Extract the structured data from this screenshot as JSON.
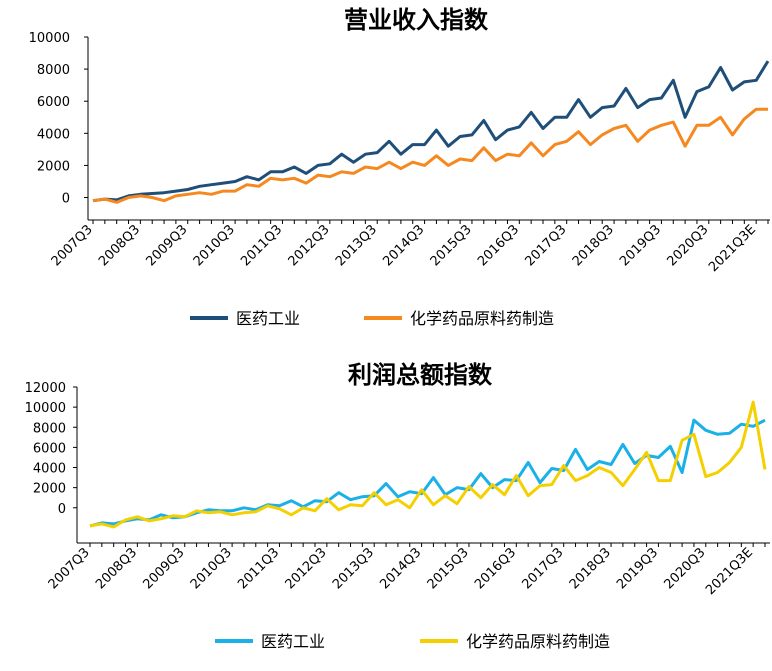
{
  "chart_data": [
    {
      "type": "line",
      "title": "营业收入指数",
      "categories": [
        "2007Q3",
        null,
        null,
        null,
        "2008Q3",
        null,
        null,
        null,
        "2009Q3",
        null,
        null,
        null,
        "2010Q3",
        null,
        null,
        null,
        "2011Q3",
        null,
        null,
        null,
        "2012Q3",
        null,
        null,
        null,
        "2013Q3",
        null,
        null,
        null,
        "2014Q3",
        null,
        null,
        null,
        "2015Q3",
        null,
        null,
        null,
        "2016Q3",
        null,
        null,
        null,
        "2017Q3",
        null,
        null,
        null,
        "2018Q3",
        null,
        null,
        null,
        "2019Q3",
        null,
        null,
        null,
        "2020Q3",
        null,
        null,
        null,
        "2021Q3E",
        null
      ],
      "series": [
        {
          "name": "医药工业",
          "color": "#1f4e79",
          "values": [
            -200,
            -100,
            -150,
            100,
            200,
            250,
            300,
            400,
            500,
            700,
            800,
            900,
            1000,
            1300,
            1100,
            1600,
            1600,
            1900,
            1500,
            2000,
            2100,
            2700,
            2200,
            2700,
            2800,
            3500,
            2700,
            3300,
            3300,
            4200,
            3200,
            3800,
            3900,
            4800,
            3600,
            4200,
            4400,
            5300,
            4300,
            5000,
            5000,
            6100,
            5000,
            5600,
            5700,
            6800,
            5600,
            6100,
            6200,
            7300,
            5000,
            6600,
            6900,
            8100,
            6700,
            7200,
            7300,
            8500
          ]
        },
        {
          "name": "化学药品原料药制造",
          "color": "#f5891f",
          "values": [
            -200,
            -100,
            -300,
            0,
            100,
            0,
            -200,
            100,
            200,
            300,
            200,
            400,
            400,
            800,
            700,
            1200,
            1100,
            1200,
            900,
            1400,
            1300,
            1600,
            1500,
            1900,
            1800,
            2200,
            1800,
            2200,
            2000,
            2600,
            2000,
            2400,
            2300,
            3100,
            2300,
            2700,
            2600,
            3400,
            2600,
            3300,
            3500,
            4100,
            3300,
            3900,
            4300,
            4500,
            3500,
            4200,
            4500,
            4700,
            3200,
            4500,
            4500,
            5000,
            3900,
            4900,
            5500,
            5500
          ]
        }
      ],
      "ylim": [
        -1400,
        10000
      ],
      "yticks": [
        0,
        2000,
        4000,
        6000,
        8000,
        10000
      ]
    },
    {
      "type": "line",
      "title": "利润总额指数",
      "categories": [
        "2007Q3",
        null,
        null,
        null,
        "2008Q3",
        null,
        null,
        null,
        "2009Q3",
        null,
        null,
        null,
        "2010Q3",
        null,
        null,
        null,
        "2011Q3",
        null,
        null,
        null,
        "2012Q3",
        null,
        null,
        null,
        "2013Q3",
        null,
        null,
        null,
        "2014Q3",
        null,
        null,
        null,
        "2015Q3",
        null,
        null,
        null,
        "2016Q3",
        null,
        null,
        null,
        "2017Q3",
        null,
        null,
        null,
        "2018Q3",
        null,
        null,
        null,
        "2019Q3",
        null,
        null,
        null,
        "2020Q3",
        null,
        null,
        null,
        "2021Q3E",
        null
      ],
      "series": [
        {
          "name": "医药工业",
          "color": "#1ab0e8",
          "values": [
            -1800,
            -1500,
            -1600,
            -1300,
            -1100,
            -1200,
            -700,
            -1000,
            -900,
            -500,
            -200,
            -300,
            -300,
            0,
            -200,
            300,
            200,
            700,
            100,
            700,
            600,
            1500,
            800,
            1100,
            1200,
            2400,
            1100,
            1600,
            1400,
            3000,
            1300,
            2000,
            1800,
            3400,
            2000,
            2800,
            2700,
            4500,
            2500,
            3900,
            3700,
            5800,
            3800,
            4600,
            4300,
            6300,
            4400,
            5200,
            5000,
            6100,
            3500,
            8700,
            7700,
            7300,
            7400,
            8300,
            8100,
            8700
          ]
        },
        {
          "name": "化学药品原料药制造",
          "color": "#f5d000",
          "values": [
            -1800,
            -1600,
            -1900,
            -1200,
            -900,
            -1300,
            -1100,
            -800,
            -900,
            -300,
            -500,
            -400,
            -700,
            -500,
            -400,
            200,
            -100,
            -700,
            0,
            -300,
            900,
            -200,
            300,
            200,
            1500,
            300,
            800,
            0,
            1800,
            300,
            1200,
            400,
            2100,
            1000,
            2300,
            1300,
            3200,
            1200,
            2200,
            2300,
            4200,
            2700,
            3200,
            4000,
            3500,
            2200,
            3800,
            5500,
            2700,
            2700,
            6700,
            7300,
            3100,
            3500,
            4500,
            6000,
            10500,
            3800
          ]
        }
      ],
      "ylim": [
        -3500,
        12000
      ],
      "yticks": [
        0,
        2000,
        4000,
        6000,
        8000,
        10000,
        12000
      ]
    }
  ]
}
